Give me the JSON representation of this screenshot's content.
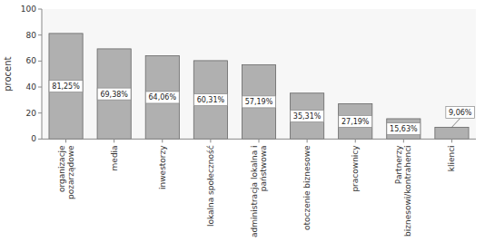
{
  "chart_data": {
    "type": "bar",
    "categories": [
      "organizacje\npozarządowe",
      "media",
      "inwestorzy",
      "lokalna społeczność",
      "administracja lokalna i\npaństwowa",
      "otoczenie biznesowe",
      "pracownicy",
      "Partnerzy\nbiznesowi/kontrahenci",
      "klienci"
    ],
    "values": [
      81.25,
      69.38,
      64.06,
      60.31,
      57.19,
      35.31,
      27.19,
      15.63,
      9.06
    ],
    "value_labels": [
      "81,25%",
      "69,38%",
      "64,06%",
      "60,31%",
      "57,19%",
      "35,31%",
      "27,19%",
      "15,63%",
      "9,06%"
    ],
    "data_labels": true,
    "color": "#b0b0b0",
    "ylabel": "procent",
    "ylim": [
      0,
      100
    ],
    "yticks": [
      0,
      20,
      40,
      60,
      80,
      100
    ],
    "grid": false
  }
}
